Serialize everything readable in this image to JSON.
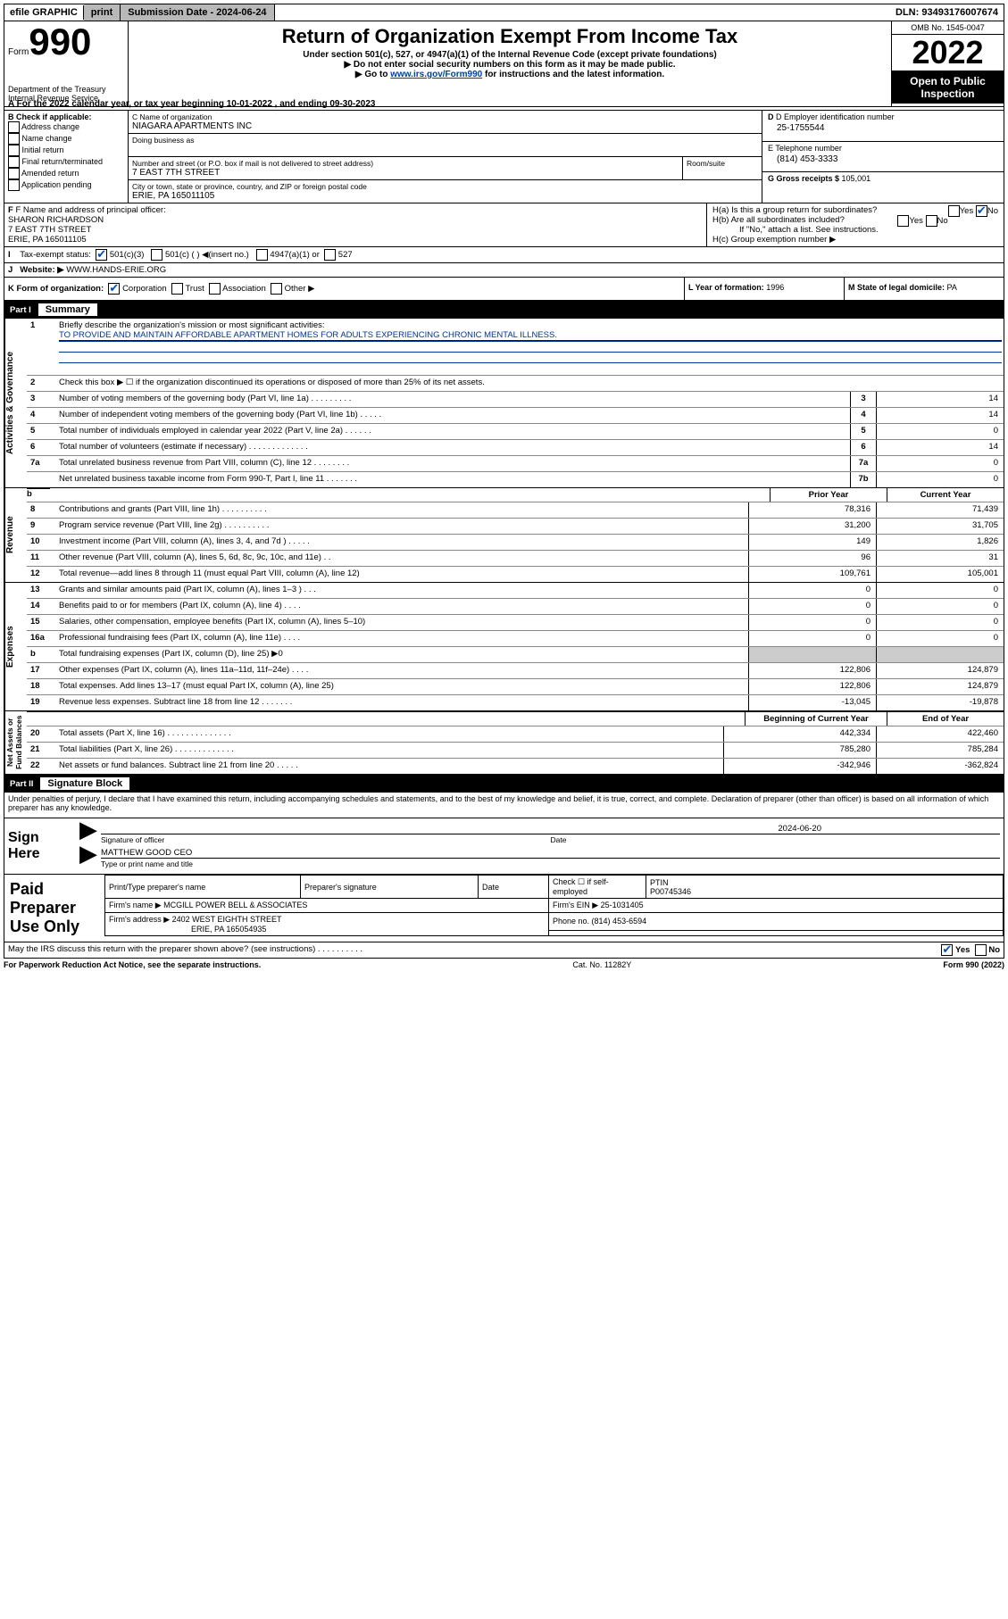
{
  "topbar": {
    "efile": "efile GRAPHIC",
    "print": "print",
    "subdate_label": "Submission Date - ",
    "subdate": "2024-06-24",
    "dln_label": "DLN: ",
    "dln": "93493176007674"
  },
  "header": {
    "form_label": "Form",
    "form_number": "990",
    "dept": "Department of the Treasury\nInternal Revenue Service",
    "title": "Return of Organization Exempt From Income Tax",
    "sub": "Under section 501(c), 527, or 4947(a)(1) of the Internal Revenue Code (except private foundations)",
    "note1": "▶ Do not enter social security numbers on this form as it may be made public.",
    "note2_a": "▶ Go to ",
    "note2_link": "www.irs.gov/Form990",
    "note2_b": " for instructions and the latest information.",
    "omb": "OMB No. 1545-0047",
    "year": "2022",
    "open": "Open to Public Inspection"
  },
  "taxyear": {
    "a": "A For the 2022 calendar year, or tax year beginning ",
    "begin": "10-01-2022",
    "mid": " , and ending ",
    "end": "09-30-2023"
  },
  "B": {
    "label": "B Check if applicable:",
    "items": [
      "Address change",
      "Name change",
      "Initial return",
      "Final return/terminated",
      "Amended return",
      "Application pending"
    ]
  },
  "C": {
    "name_lbl": "C Name of organization",
    "name": "NIAGARA APARTMENTS INC",
    "dba_lbl": "Doing business as",
    "addr_lbl": "Number and street (or P.O. box if mail is not delivered to street address)",
    "room_lbl": "Room/suite",
    "addr": "7 EAST 7TH STREET",
    "city_lbl": "City or town, state or province, country, and ZIP or foreign postal code",
    "city": "ERIE, PA  165011105"
  },
  "D": {
    "lbl": "D Employer identification number",
    "val": "25-1755544"
  },
  "E": {
    "lbl": "E Telephone number",
    "val": "(814) 453-3333"
  },
  "G": {
    "lbl": "G Gross receipts $ ",
    "val": "105,001"
  },
  "F": {
    "lbl": "F  Name and address of principal officer:",
    "name": "SHARON RICHARDSON",
    "addr1": "7 EAST 7TH STREET",
    "addr2": "ERIE, PA  165011105"
  },
  "H": {
    "a": "H(a)  Is this a group return for subordinates?",
    "b": "H(b)  Are all subordinates included?",
    "b_note": "If \"No,\" attach a list. See instructions.",
    "c": "H(c)  Group exemption number ▶",
    "yes": "Yes",
    "no": "No"
  },
  "I": {
    "lbl": "Tax-exempt status:",
    "c1": "501(c)(3)",
    "c2": "501(c) (  ) ◀(insert no.)",
    "c3": "4947(a)(1) or",
    "c4": "527"
  },
  "J": {
    "lbl": "Website: ▶ ",
    "val": "WWW.HANDS-ERIE.ORG"
  },
  "K": {
    "lbl": "K Form of organization:",
    "corp": "Corporation",
    "trust": "Trust",
    "assoc": "Association",
    "other": "Other ▶"
  },
  "L": {
    "lbl": "L Year of formation: ",
    "val": "1996"
  },
  "M": {
    "lbl": "M State of legal domicile: ",
    "val": "PA"
  },
  "partI": {
    "n": "Part I",
    "t": "Summary"
  },
  "summary": {
    "l1": "Briefly describe the organization's mission or most significant activities:",
    "mission": "TO PROVIDE AND MAINTAIN AFFORDABLE APARTMENT HOMES FOR ADULTS EXPERIENCING CHRONIC MENTAL ILLNESS.",
    "l2": "Check this box ▶ ☐  if the organization discontinued its operations or disposed of more than 25% of its net assets.",
    "rows": [
      {
        "n": "3",
        "t": "Number of voting members of the governing body (Part VI, line 1a)  .    .    .    .    .    .    .    .    .",
        "b": "3",
        "v": "14"
      },
      {
        "n": "4",
        "t": "Number of independent voting members of the governing body (Part VI, line 1b)  .    .    .    .    .",
        "b": "4",
        "v": "14"
      },
      {
        "n": "5",
        "t": "Total number of individuals employed in calendar year 2022 (Part V, line 2a)  .    .    .    .    .    .",
        "b": "5",
        "v": "0"
      },
      {
        "n": "6",
        "t": "Total number of volunteers (estimate if necessary)  .    .    .    .    .    .    .    .    .    .    .    .    .",
        "b": "6",
        "v": "14"
      },
      {
        "n": "7a",
        "t": "Total unrelated business revenue from Part VIII, column (C), line 12  .    .    .    .    .    .    .    .",
        "b": "7a",
        "v": "0"
      },
      {
        "n": "",
        "t": "Net unrelated business taxable income from Form 990-T, Part I, line 11  .    .    .    .    .    .    .",
        "b": "7b",
        "v": "0"
      }
    ],
    "hdr_prior": "Prior Year",
    "hdr_curr": "Current Year",
    "rev": [
      {
        "n": "8",
        "t": "Contributions and grants (Part VIII, line 1h)   .    .    .    .    .    .    .    .    .    .",
        "p": "78,316",
        "c": "71,439"
      },
      {
        "n": "9",
        "t": "Program service revenue (Part VIII, line 2g)   .    .    .    .    .    .    .    .    .    .",
        "p": "31,200",
        "c": "31,705"
      },
      {
        "n": "10",
        "t": "Investment income (Part VIII, column (A), lines 3, 4, and 7d )   .    .    .    .    .",
        "p": "149",
        "c": "1,826"
      },
      {
        "n": "11",
        "t": "Other revenue (Part VIII, column (A), lines 5, 6d, 8c, 9c, 10c, and 11e)   .    .",
        "p": "96",
        "c": "31"
      },
      {
        "n": "12",
        "t": "Total revenue—add lines 8 through 11 (must equal Part VIII, column (A), line 12)",
        "p": "109,761",
        "c": "105,001"
      }
    ],
    "exp": [
      {
        "n": "13",
        "t": "Grants and similar amounts paid (Part IX, column (A), lines 1–3 )   .    .    .",
        "p": "0",
        "c": "0"
      },
      {
        "n": "14",
        "t": "Benefits paid to or for members (Part IX, column (A), line 4)   .    .    .    .",
        "p": "0",
        "c": "0"
      },
      {
        "n": "15",
        "t": "Salaries, other compensation, employee benefits (Part IX, column (A), lines 5–10)",
        "p": "0",
        "c": "0"
      },
      {
        "n": "16a",
        "t": "Professional fundraising fees (Part IX, column (A), line 11e)   .    .    .    .",
        "p": "0",
        "c": "0"
      },
      {
        "n": "b",
        "t": "Total fundraising expenses (Part IX, column (D), line 25) ▶0",
        "p": "",
        "c": "",
        "grey": true
      },
      {
        "n": "17",
        "t": "Other expenses (Part IX, column (A), lines 11a–11d, 11f–24e)   .    .    .    .",
        "p": "122,806",
        "c": "124,879"
      },
      {
        "n": "18",
        "t": "Total expenses. Add lines 13–17 (must equal Part IX, column (A), line 25)",
        "p": "122,806",
        "c": "124,879"
      },
      {
        "n": "19",
        "t": "Revenue less expenses. Subtract line 18 from line 12   .    .    .    .    .    .    .",
        "p": "-13,045",
        "c": "-19,878"
      }
    ],
    "hdr_boy": "Beginning of Current Year",
    "hdr_eoy": "End of Year",
    "net": [
      {
        "n": "20",
        "t": "Total assets (Part X, line 16)   .    .    .    .    .    .    .    .    .    .    .    .    .    .",
        "p": "442,334",
        "c": "422,460"
      },
      {
        "n": "21",
        "t": "Total liabilities (Part X, line 26)   .    .    .    .    .    .    .    .    .    .    .    .    .",
        "p": "785,280",
        "c": "785,284"
      },
      {
        "n": "22",
        "t": "Net assets or fund balances. Subtract line 21 from line 20   .    .    .    .    .",
        "p": "-342,946",
        "c": "-362,824"
      }
    ]
  },
  "sides": {
    "gov": "Activities & Governance",
    "rev": "Revenue",
    "exp": "Expenses",
    "net": "Net Assets or\nFund Balances"
  },
  "partII": {
    "n": "Part II",
    "t": "Signature Block"
  },
  "sig": {
    "decl": "Under penalties of perjury, I declare that I have examined this return, including accompanying schedules and statements, and to the best of my knowledge and belief, it is true, correct, and complete. Declaration of preparer (other than officer) is based on all information of which preparer has any knowledge.",
    "here": "Sign Here",
    "sig_of": "Signature of officer",
    "date": "Date",
    "date_val": "2024-06-20",
    "name": "MATTHEW GOOD CEO",
    "name_lbl": "Type or print name and title"
  },
  "paid": {
    "lbl": "Paid Preparer Use Only",
    "h1": "Print/Type preparer's name",
    "h2": "Preparer's signature",
    "h3": "Date",
    "h4a": "Check ☐ if self-employed",
    "h4b_lbl": "PTIN",
    "h4b": "P00745346",
    "firm_lbl": "Firm's name     ▶ ",
    "firm": "MCGILL POWER BELL & ASSOCIATES",
    "firm_ein_lbl": "Firm's EIN ▶ ",
    "firm_ein": "25-1031405",
    "addr_lbl": "Firm's address ▶ ",
    "addr1": "2402 WEST EIGHTH STREET",
    "addr2": "ERIE, PA  165054935",
    "phone_lbl": "Phone no. ",
    "phone": "(814) 453-6594"
  },
  "footer": {
    "q": "May the IRS discuss this return with the preparer shown above? (see instructions)   .    .    .    .    .    .    .    .    .    .",
    "yes": "Yes",
    "no": "No",
    "pra": "For Paperwork Reduction Act Notice, see the separate instructions.",
    "cat": "Cat. No. 11282Y",
    "form": "Form 990 (2022)"
  }
}
